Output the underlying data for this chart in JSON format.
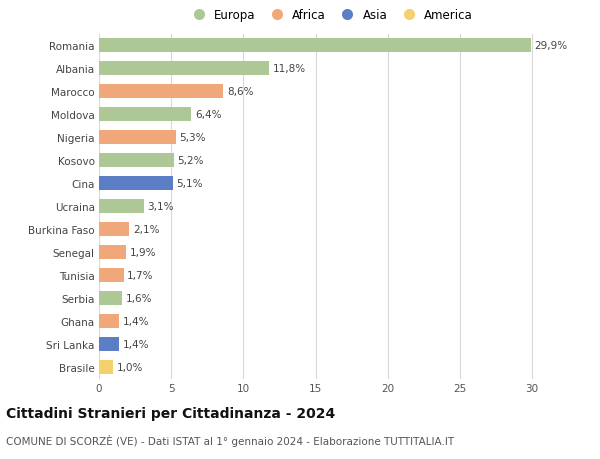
{
  "countries": [
    "Romania",
    "Albania",
    "Marocco",
    "Moldova",
    "Nigeria",
    "Kosovo",
    "Cina",
    "Ucraina",
    "Burkina Faso",
    "Senegal",
    "Tunisia",
    "Serbia",
    "Ghana",
    "Sri Lanka",
    "Brasile"
  ],
  "values": [
    29.9,
    11.8,
    8.6,
    6.4,
    5.3,
    5.2,
    5.1,
    3.1,
    2.1,
    1.9,
    1.7,
    1.6,
    1.4,
    1.4,
    1.0
  ],
  "labels": [
    "29,9%",
    "11,8%",
    "8,6%",
    "6,4%",
    "5,3%",
    "5,2%",
    "5,1%",
    "3,1%",
    "2,1%",
    "1,9%",
    "1,7%",
    "1,6%",
    "1,4%",
    "1,4%",
    "1,0%"
  ],
  "continents": [
    "Europa",
    "Europa",
    "Africa",
    "Europa",
    "Africa",
    "Europa",
    "Asia",
    "Europa",
    "Africa",
    "Africa",
    "Africa",
    "Europa",
    "Africa",
    "Asia",
    "America"
  ],
  "continent_colors": {
    "Europa": "#adc896",
    "Africa": "#f0a87a",
    "Asia": "#5b7ec4",
    "America": "#f5d06e"
  },
  "legend_order": [
    "Europa",
    "Africa",
    "Asia",
    "America"
  ],
  "title": "Cittadini Stranieri per Cittadinanza - 2024",
  "subtitle": "COMUNE DI SCORZÈ (VE) - Dati ISTAT al 1° gennaio 2024 - Elaborazione TUTTITALIA.IT",
  "xlim": [
    0,
    32
  ],
  "xticks": [
    0,
    5,
    10,
    15,
    20,
    25,
    30
  ],
  "bg_color": "#ffffff",
  "grid_color": "#d8d8d8",
  "bar_height": 0.62,
  "title_fontsize": 10,
  "subtitle_fontsize": 7.5,
  "label_fontsize": 7.5,
  "tick_fontsize": 7.5,
  "legend_fontsize": 8.5
}
